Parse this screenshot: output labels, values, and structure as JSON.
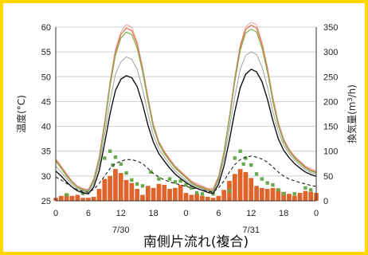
{
  "chart_data": {
    "type": "line",
    "title": "南側片流れ(複合)",
    "ylabel_left": "温度(°C)",
    "ylabel_right_parts": [
      "換気量(m",
      "3",
      "/h)"
    ],
    "y_left_lim": [
      25,
      60
    ],
    "y_left_ticks": [
      "25",
      "30",
      "35",
      "40",
      "45",
      "50",
      "55",
      "60"
    ],
    "y_right_lim": [
      0,
      350
    ],
    "y_right_ticks": [
      "0",
      "50",
      "100",
      "150",
      "200",
      "250",
      "300",
      "350"
    ],
    "x_ticks": [
      "0",
      "6",
      "12",
      "18",
      "0",
      "6",
      "12",
      "18",
      "0"
    ],
    "date_labels": [
      {
        "hour": 12,
        "text": "7/30"
      },
      {
        "hour": 36,
        "text": "7/31"
      }
    ],
    "x_range_hours": [
      0,
      48
    ],
    "grid": "horizontal",
    "series": [
      {
        "color": "#e8a0a0",
        "width": 1.0,
        "values": [
          33.5,
          32,
          30.5,
          29,
          28,
          27.5,
          27.3,
          29.5,
          34,
          41,
          49,
          55.5,
          59,
          60.5,
          60,
          57,
          52,
          46,
          40.5,
          37,
          35,
          33.5,
          32,
          31,
          30,
          29,
          28.5,
          28,
          27.5,
          27.5,
          30,
          35,
          42,
          50,
          56.5,
          60,
          61,
          60.5,
          57,
          52,
          46,
          41,
          37.5,
          35.5,
          34,
          33,
          32,
          31.5,
          31
        ]
      },
      {
        "color": "#e07040",
        "width": 1.2,
        "values": [
          33.2,
          31.8,
          30.2,
          28.8,
          27.8,
          27.3,
          27.1,
          29.2,
          33.5,
          40.5,
          48.5,
          55,
          58.5,
          59.8,
          59.3,
          56.5,
          51.5,
          45.5,
          40,
          36.8,
          34.8,
          33.2,
          31.8,
          30.8,
          29.8,
          28.8,
          28.2,
          27.8,
          27.3,
          27.2,
          29.8,
          34.8,
          41.8,
          49.5,
          56,
          59.5,
          60.4,
          59.8,
          56.5,
          51.5,
          45.5,
          40.5,
          37.2,
          35.2,
          33.8,
          32.8,
          31.8,
          31.2,
          30.8
        ]
      },
      {
        "color": "#7cb04a",
        "width": 1.2,
        "values": [
          33,
          31.5,
          30,
          28.7,
          27.7,
          27.2,
          27,
          29,
          33.2,
          40,
          48,
          54.3,
          57.8,
          59,
          58.5,
          55.8,
          51,
          45,
          39.7,
          36.5,
          34.5,
          33,
          31.6,
          30.6,
          29.6,
          28.6,
          28,
          27.6,
          27.1,
          27,
          29.5,
          34.5,
          41.3,
          49,
          55.3,
          58.8,
          59.6,
          59,
          55.8,
          51,
          45,
          40.2,
          36.9,
          35,
          33.6,
          32.6,
          31.6,
          31,
          30.6
        ]
      },
      {
        "color": "#a0a0a0",
        "width": 1.0,
        "values": [
          32,
          30.8,
          29.5,
          28.3,
          27.4,
          27,
          26.8,
          28.5,
          32.2,
          38.3,
          45,
          50.5,
          53,
          54,
          53.5,
          51.5,
          47.5,
          42.5,
          38.2,
          35.5,
          33.8,
          32.3,
          31,
          30,
          29.1,
          28.3,
          27.8,
          27.4,
          27,
          26.8,
          29,
          33.5,
          39.5,
          46,
          51.5,
          54.3,
          55,
          54.5,
          52,
          48,
          43,
          39,
          36.2,
          34.5,
          33.2,
          32.2,
          31.3,
          30.7,
          30.3
        ]
      },
      {
        "color": "#111111",
        "width": 1.4,
        "values": [
          31,
          30,
          28.8,
          27.8,
          27,
          26.6,
          26.4,
          27.8,
          31,
          36.5,
          42.5,
          47.2,
          49.5,
          50.2,
          49.8,
          48,
          44.5,
          40.2,
          36.8,
          34.5,
          33,
          31.6,
          30.4,
          29.5,
          28.7,
          28,
          27.5,
          27.1,
          26.7,
          26.5,
          28.3,
          32,
          37.2,
          43,
          47.8,
          50.5,
          51.5,
          51,
          49,
          45.5,
          41.2,
          37.5,
          35.2,
          33.7,
          32.5,
          31.6,
          30.8,
          30.3,
          29.9
        ]
      },
      {
        "color": "#222222",
        "width": 1.1,
        "dash": "4,3",
        "values": [
          29.8,
          29.2,
          28.5,
          27.8,
          27.2,
          26.9,
          26.7,
          27.3,
          28.5,
          30,
          31.5,
          32.5,
          33,
          33.3,
          33.3,
          33,
          32.5,
          31.5,
          30.5,
          29.8,
          29.2,
          28.8,
          28.5,
          28.2,
          27.9,
          27.6,
          27.4,
          27.2,
          26.9,
          26.8,
          27.6,
          29,
          30.8,
          32.3,
          33.3,
          33.8,
          34,
          33.8,
          33.4,
          32.8,
          31.8,
          30.8,
          30,
          29.4,
          29,
          28.7,
          28.4,
          28.1,
          27.9
        ]
      }
    ],
    "ventilation_bars": {
      "color": "#e0642a",
      "unit": "m3/h",
      "values": [
        6,
        10,
        14,
        10,
        12,
        6,
        6,
        8,
        24,
        44,
        50,
        64,
        56,
        42,
        36,
        24,
        12,
        30,
        26,
        34,
        32,
        24,
        26,
        32,
        16,
        12,
        14,
        10,
        8,
        6,
        10,
        22,
        40,
        54,
        64,
        58,
        46,
        30,
        26,
        24,
        26,
        24,
        18,
        14,
        10,
        16,
        20,
        18,
        16
      ]
    },
    "green_markers": {
      "color": "#6aa84f",
      "points": [
        [
          2,
          12
        ],
        [
          5,
          15
        ],
        [
          9,
          86
        ],
        [
          10,
          100
        ],
        [
          10.5,
          72
        ],
        [
          11,
          88
        ],
        [
          12,
          74
        ],
        [
          13,
          56
        ],
        [
          14,
          42
        ],
        [
          15,
          34
        ],
        [
          16,
          30
        ],
        [
          17.5,
          58
        ],
        [
          19,
          44
        ],
        [
          21,
          44
        ],
        [
          22,
          38
        ],
        [
          23,
          40
        ],
        [
          24,
          32
        ],
        [
          25,
          26
        ],
        [
          26,
          16
        ],
        [
          27,
          14
        ],
        [
          29,
          14
        ],
        [
          32,
          20
        ],
        [
          33,
          86
        ],
        [
          34,
          100
        ],
        [
          34.6,
          74
        ],
        [
          35,
          86
        ],
        [
          36,
          72
        ],
        [
          37,
          54
        ],
        [
          38,
          44
        ],
        [
          39,
          36
        ],
        [
          40,
          32
        ],
        [
          41,
          22
        ],
        [
          42,
          14
        ],
        [
          44,
          14
        ],
        [
          46,
          26
        ],
        [
          47,
          22
        ]
      ]
    }
  }
}
